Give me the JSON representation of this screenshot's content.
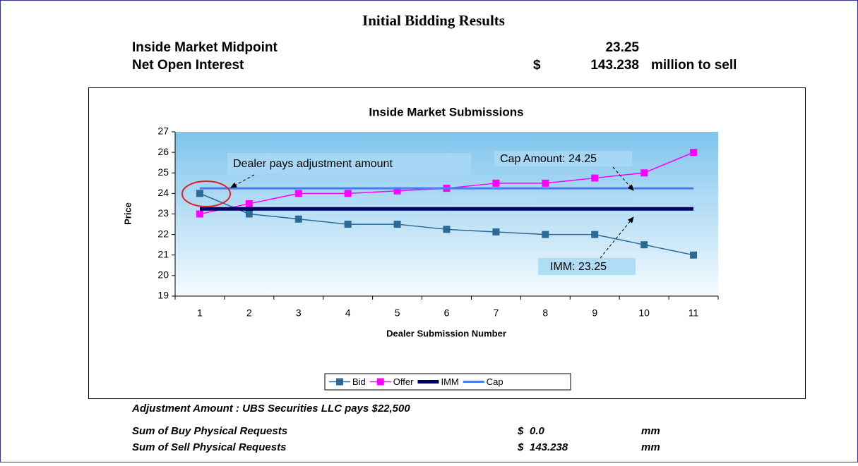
{
  "header": {
    "title": "Initial Bidding Results",
    "rows": [
      [
        "Inside Market Midpoint",
        "23.25"
      ],
      [
        "Net Open Interest",
        "$",
        "143.238",
        "million to sell"
      ]
    ]
  },
  "chart_data": {
    "type": "line",
    "title": "Inside Market Submissions",
    "x_label": "Dealer Submission Number",
    "y_label": "Price",
    "categories": [
      1,
      2,
      3,
      4,
      5,
      6,
      7,
      8,
      9,
      10,
      11
    ],
    "ylim": [
      19,
      27
    ],
    "yticks": [
      19,
      20,
      21,
      22,
      23,
      24,
      25,
      26,
      27
    ],
    "series": [
      {
        "name": "Bid",
        "color": "#2b6a96",
        "marker": "square",
        "values": [
          24,
          23,
          22.75,
          22.5,
          22.5,
          22.25,
          22.125,
          22,
          22,
          21.5,
          21
        ]
      },
      {
        "name": "Offer",
        "color": "#ff00ff",
        "marker": "square",
        "values": [
          23,
          23.5,
          24,
          24,
          24.125,
          24.25,
          24.5,
          24.5,
          24.75,
          25,
          26
        ]
      },
      {
        "name": "IMM",
        "color": "#000066",
        "values": [
          23.25,
          23.25,
          23.25,
          23.25,
          23.25,
          23.25,
          23.25,
          23.25,
          23.25,
          23.25,
          23.25
        ]
      },
      {
        "name": "Cap",
        "color": "#4a7bf0",
        "values": [
          24.25,
          24.25,
          24.25,
          24.25,
          24.25,
          24.25,
          24.25,
          24.25,
          24.25,
          24.25,
          24.25
        ]
      }
    ],
    "annotations": [
      "Dealer pays adjustment amount",
      "Cap Amount: 24.25",
      "IMM: 23.25"
    ],
    "legend": "bottom"
  },
  "footer": {
    "note": "Adjustment Amount : UBS Securities LLC pays $22,500",
    "rows": [
      [
        "Sum of Buy Physical Requests",
        "$",
        "0.0",
        "mm"
      ],
      [
        "Sum of Sell Physical Requests",
        "$",
        "143.238",
        "mm"
      ]
    ]
  }
}
